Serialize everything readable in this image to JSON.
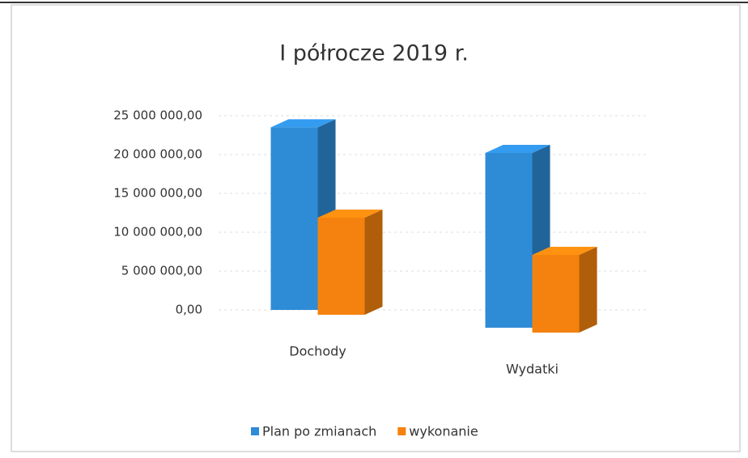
{
  "chart_data": {
    "type": "bar3d",
    "title": "I półrocze 2019 r.",
    "categories": [
      "Dochody",
      "Wydatki"
    ],
    "series": [
      {
        "name": "Plan po zmianach",
        "color": "#2e8bd6",
        "values": [
          23500000,
          22500000
        ]
      },
      {
        "name": "wykonanie",
        "color": "#f5820e",
        "values": [
          12500000,
          10000000
        ]
      }
    ],
    "ylim": [
      0,
      25000000
    ],
    "yticks": [
      {
        "value": 0,
        "label": "0,00"
      },
      {
        "value": 5000000,
        "label": "5 000 000,00"
      },
      {
        "value": 10000000,
        "label": "10 000 000,00"
      },
      {
        "value": 15000000,
        "label": "15 000 000,00"
      },
      {
        "value": 20000000,
        "label": "20 000 000,00"
      },
      {
        "value": 25000000,
        "label": "25 000 000,00"
      }
    ],
    "grid": true
  }
}
